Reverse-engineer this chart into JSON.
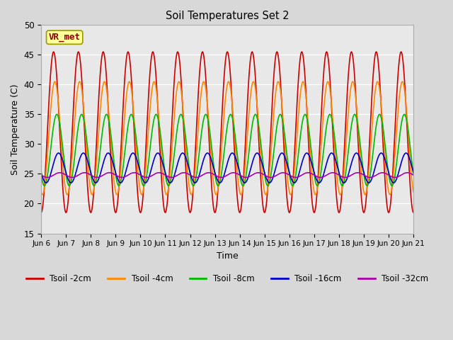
{
  "title": "Soil Temperatures Set 2",
  "xlabel": "Time",
  "ylabel": "Soil Temperature (C)",
  "ylim": [
    15,
    50
  ],
  "xlim": [
    0,
    15
  ],
  "xtick_labels": [
    "Jun 6",
    "Jun 7",
    "Jun 8",
    "Jun 9",
    "Jun 10",
    "Jun 11",
    "Jun 12",
    "Jun 13",
    "Jun 14",
    "Jun 15",
    "Jun 16",
    "Jun 17",
    "Jun 18",
    "Jun 19",
    "Jun 20",
    "Jun 21"
  ],
  "ytick_values": [
    15,
    20,
    25,
    30,
    35,
    40,
    45,
    50
  ],
  "fig_bg_color": "#d8d8d8",
  "plot_bg_color": "#e8e8e8",
  "grid_color": "#ffffff",
  "line_colors": {
    "Tsoil -2cm": "#cc0000",
    "Tsoil -4cm": "#ff8800",
    "Tsoil -8cm": "#00bb00",
    "Tsoil -16cm": "#0000cc",
    "Tsoil -32cm": "#aa00aa"
  },
  "annotation": {
    "text": "VR_met",
    "fontsize": 9,
    "color": "#8B0000",
    "bg_color": "#ffff99",
    "border_color": "#999900"
  }
}
